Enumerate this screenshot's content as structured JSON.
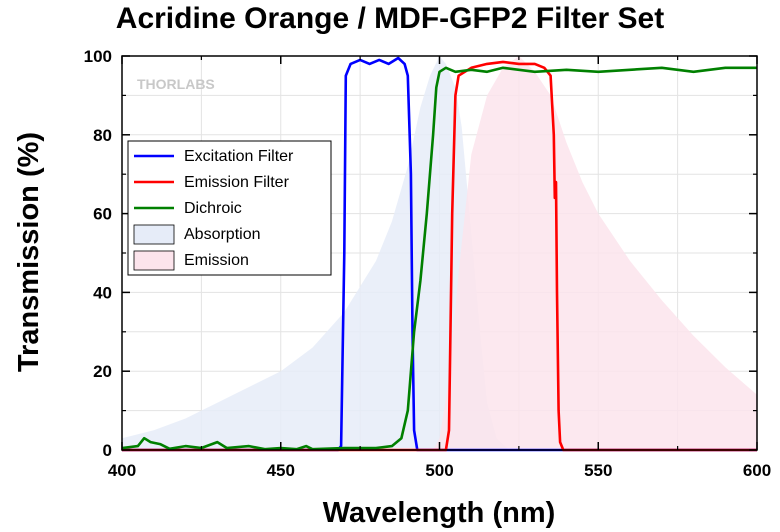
{
  "chart_data": {
    "type": "line",
    "title": "Acridine Orange / MDF-GFP2 Filter Set",
    "xlabel": "Wavelength (nm)",
    "ylabel": "Transmission (%)",
    "xlim": [
      400,
      600
    ],
    "ylim": [
      0,
      100
    ],
    "x_ticks": [
      400,
      450,
      500,
      550,
      600
    ],
    "y_ticks": [
      0,
      20,
      40,
      60,
      80,
      100
    ],
    "grid": true,
    "legend_position": "upper-left",
    "watermark": "THORLABS",
    "series": [
      {
        "name": "Excitation Filter",
        "kind": "line",
        "color": "#0000ff",
        "points": [
          [
            400,
            0
          ],
          [
            468,
            0
          ],
          [
            469,
            1
          ],
          [
            470,
            50
          ],
          [
            470.5,
            95
          ],
          [
            472,
            98
          ],
          [
            475,
            99
          ],
          [
            478,
            98
          ],
          [
            481,
            99
          ],
          [
            484,
            98
          ],
          [
            487,
            99.5
          ],
          [
            489,
            98
          ],
          [
            490,
            95
          ],
          [
            491,
            70
          ],
          [
            491.5,
            30
          ],
          [
            492,
            5
          ],
          [
            493,
            0
          ],
          [
            600,
            0
          ]
        ]
      },
      {
        "name": "Emission Filter",
        "kind": "line",
        "color": "#ff0000",
        "points": [
          [
            400,
            0
          ],
          [
            502,
            0
          ],
          [
            503,
            5
          ],
          [
            504,
            60
          ],
          [
            505,
            90
          ],
          [
            506,
            95
          ],
          [
            510,
            97
          ],
          [
            515,
            98
          ],
          [
            520,
            98.5
          ],
          [
            525,
            98
          ],
          [
            530,
            98
          ],
          [
            533,
            97
          ],
          [
            535,
            95
          ],
          [
            536,
            80
          ],
          [
            536.3,
            64
          ],
          [
            536.7,
            68
          ],
          [
            537,
            40
          ],
          [
            537.5,
            10
          ],
          [
            538,
            2
          ],
          [
            539,
            0
          ],
          [
            600,
            0
          ]
        ]
      },
      {
        "name": "Dichroic",
        "kind": "line",
        "color": "#008000",
        "points": [
          [
            400,
            0.5
          ],
          [
            405,
            1
          ],
          [
            407,
            3
          ],
          [
            409,
            2
          ],
          [
            412,
            1.5
          ],
          [
            415,
            0.3
          ],
          [
            420,
            1
          ],
          [
            425,
            0.5
          ],
          [
            430,
            2
          ],
          [
            433,
            0.5
          ],
          [
            440,
            1
          ],
          [
            445,
            0.2
          ],
          [
            450,
            0.5
          ],
          [
            455,
            0.2
          ],
          [
            458,
            1
          ],
          [
            460,
            0.2
          ],
          [
            470,
            0.5
          ],
          [
            480,
            0.5
          ],
          [
            485,
            1
          ],
          [
            488,
            3
          ],
          [
            490,
            10
          ],
          [
            492,
            30
          ],
          [
            494,
            43
          ],
          [
            496,
            60
          ],
          [
            498,
            80
          ],
          [
            499,
            92
          ],
          [
            500,
            96
          ],
          [
            502,
            97
          ],
          [
            505,
            96
          ],
          [
            510,
            96.5
          ],
          [
            515,
            96
          ],
          [
            520,
            97
          ],
          [
            530,
            96
          ],
          [
            540,
            96.5
          ],
          [
            550,
            96
          ],
          [
            560,
            96.5
          ],
          [
            570,
            97
          ],
          [
            580,
            96
          ],
          [
            590,
            97
          ],
          [
            600,
            97
          ]
        ]
      },
      {
        "name": "Absorption",
        "kind": "area",
        "color": "#e6ecf8",
        "points": [
          [
            400,
            3
          ],
          [
            410,
            5
          ],
          [
            420,
            8
          ],
          [
            430,
            12
          ],
          [
            440,
            16
          ],
          [
            450,
            20
          ],
          [
            460,
            26
          ],
          [
            470,
            35
          ],
          [
            480,
            48
          ],
          [
            485,
            58
          ],
          [
            490,
            72
          ],
          [
            494,
            87
          ],
          [
            497,
            95
          ],
          [
            500,
            100
          ],
          [
            502,
            98
          ],
          [
            505,
            92
          ],
          [
            507,
            82
          ],
          [
            510,
            55
          ],
          [
            513,
            28
          ],
          [
            515,
            12
          ],
          [
            518,
            3
          ],
          [
            522,
            0
          ]
        ]
      },
      {
        "name": "Emission",
        "kind": "area",
        "color": "#fce4ec",
        "points": [
          [
            498,
            0
          ],
          [
            500,
            3
          ],
          [
            503,
            18
          ],
          [
            506,
            45
          ],
          [
            510,
            75
          ],
          [
            515,
            90
          ],
          [
            520,
            97
          ],
          [
            525,
            100
          ],
          [
            530,
            96
          ],
          [
            535,
            90
          ],
          [
            540,
            78
          ],
          [
            545,
            68
          ],
          [
            550,
            60
          ],
          [
            560,
            48
          ],
          [
            570,
            38
          ],
          [
            580,
            29
          ],
          [
            590,
            21
          ],
          [
            600,
            14
          ]
        ]
      }
    ]
  }
}
